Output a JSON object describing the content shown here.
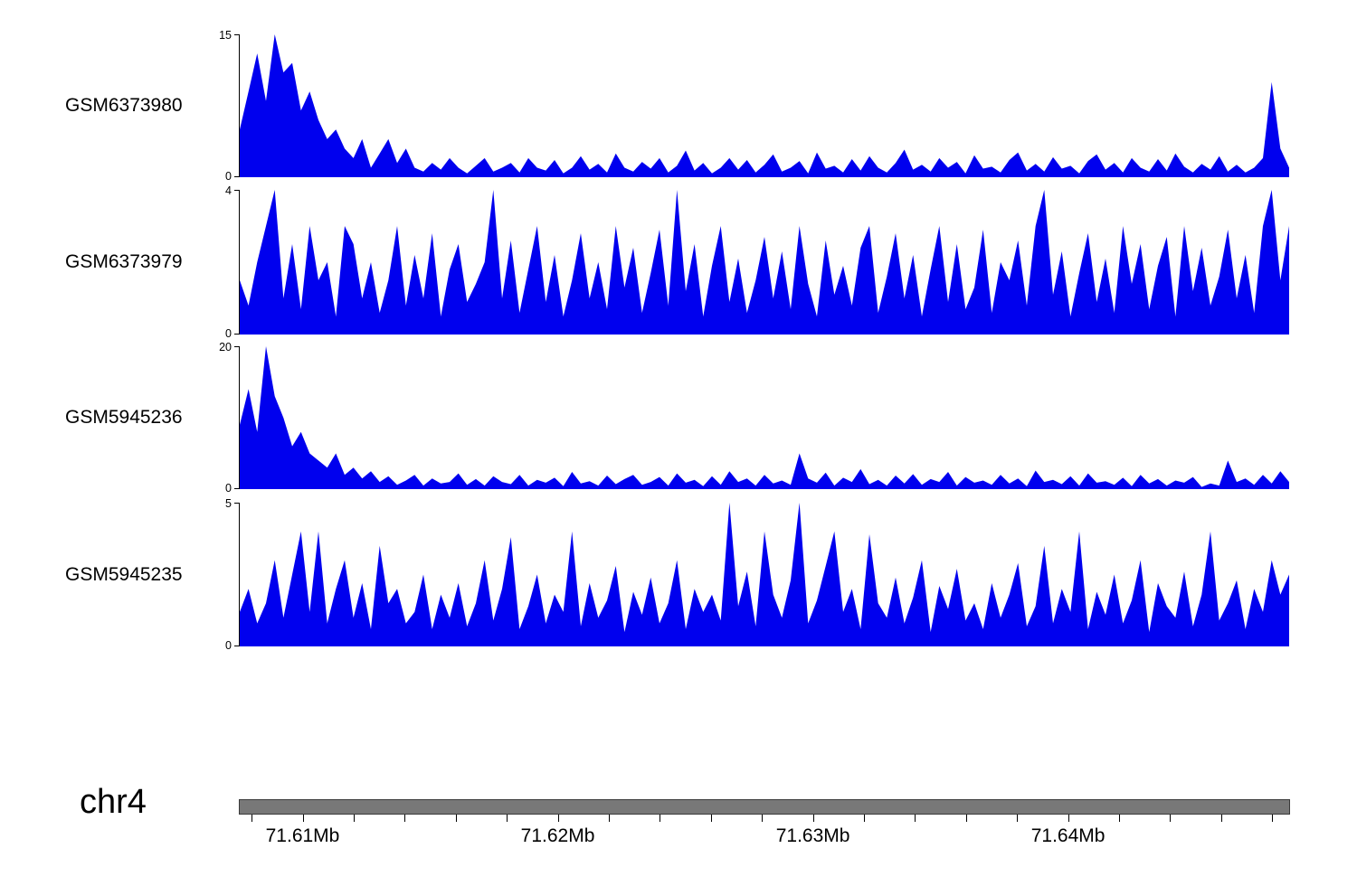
{
  "colors": {
    "signal": "#0000EE",
    "axis": "#000000",
    "chrom_bar": "#787878",
    "chrom_bar_border": "#3a3a3a"
  },
  "chart_data": {
    "type": "area",
    "x_axis": {
      "chromosome": "chr4",
      "unit": "Mb",
      "range_mb": [
        71.6075,
        71.6487
      ],
      "major_ticks": [
        {
          "mb": 71.61,
          "label": "71.61Mb"
        },
        {
          "mb": 71.62,
          "label": "71.62Mb"
        },
        {
          "mb": 71.63,
          "label": "71.63Mb"
        },
        {
          "mb": 71.64,
          "label": "71.64Mb"
        }
      ],
      "minor_tick_start_mb": 71.608,
      "minor_tick_step_mb": 0.002
    },
    "series": [
      {
        "name": "GSM6373980",
        "ylim": [
          0,
          15
        ],
        "ymax_label": "15",
        "ymin_label": "0",
        "values": [
          5,
          9,
          13,
          8,
          15,
          11,
          12,
          7,
          9,
          6,
          4,
          5,
          3,
          2,
          4,
          1,
          2.5,
          4,
          1.5,
          3,
          1,
          0.6,
          1.5,
          0.8,
          2,
          1,
          0.4,
          1.2,
          2,
          0.6,
          1,
          1.5,
          0.5,
          2,
          1,
          0.7,
          1.8,
          0.4,
          1,
          2.2,
          0.8,
          1.4,
          0.5,
          2.5,
          1,
          0.6,
          1.6,
          0.9,
          2,
          0.5,
          1.2,
          2.8,
          0.7,
          1.5,
          0.4,
          1,
          2,
          0.8,
          1.8,
          0.5,
          1.3,
          2.4,
          0.6,
          1,
          1.7,
          0.4,
          2.6,
          0.9,
          1.2,
          0.5,
          1.9,
          0.7,
          2.2,
          1,
          0.5,
          1.5,
          2.9,
          0.8,
          1.3,
          0.6,
          2,
          1,
          1.6,
          0.4,
          2.3,
          0.9,
          1.1,
          0.5,
          1.8,
          2.6,
          0.7,
          1.4,
          0.6,
          2.1,
          0.9,
          1.2,
          0.4,
          1.7,
          2.4,
          0.8,
          1.5,
          0.5,
          2,
          1,
          0.6,
          1.9,
          0.7,
          2.5,
          1.1,
          0.5,
          1.4,
          0.8,
          2.2,
          0.6,
          1.3,
          0.5,
          1,
          2,
          10,
          3,
          1
        ]
      },
      {
        "name": "GSM6373979",
        "ylim": [
          0,
          4
        ],
        "ymax_label": "4",
        "ymin_label": "0",
        "values": [
          1.5,
          0.8,
          2,
          3,
          4,
          1,
          2.5,
          0.7,
          3,
          1.5,
          2,
          0.5,
          3,
          2.5,
          1,
          2,
          0.6,
          1.5,
          3,
          0.8,
          2.2,
          1,
          2.8,
          0.5,
          1.8,
          2.5,
          0.9,
          1.4,
          2,
          4,
          1,
          2.6,
          0.6,
          1.8,
          3,
          0.9,
          2.2,
          0.5,
          1.5,
          2.8,
          1,
          2,
          0.7,
          3,
          1.3,
          2.4,
          0.6,
          1.7,
          2.9,
          0.8,
          4,
          1.2,
          2.5,
          0.5,
          1.9,
          3,
          0.9,
          2.1,
          0.6,
          1.5,
          2.7,
          1,
          2.3,
          0.7,
          3,
          1.4,
          0.5,
          2.6,
          1.1,
          1.9,
          0.8,
          2.4,
          3,
          0.6,
          1.6,
          2.8,
          1,
          2.2,
          0.5,
          1.8,
          3,
          0.9,
          2.5,
          0.7,
          1.3,
          2.9,
          0.6,
          2,
          1.5,
          2.6,
          0.8,
          3,
          4,
          1.1,
          2.3,
          0.5,
          1.7,
          2.8,
          0.9,
          2.1,
          0.6,
          3,
          1.4,
          2.5,
          0.7,
          1.9,
          2.7,
          0.5,
          3,
          1.2,
          2.4,
          0.8,
          1.6,
          2.9,
          1,
          2.2,
          0.6,
          3,
          4,
          1.5,
          3
        ]
      },
      {
        "name": "GSM5945236",
        "ylim": [
          0,
          20
        ],
        "ymax_label": "20",
        "ymin_label": "0",
        "values": [
          9,
          14,
          8,
          20,
          13,
          10,
          6,
          8,
          5,
          4,
          3,
          5,
          2,
          3,
          1.5,
          2.5,
          1,
          1.8,
          0.6,
          1.2,
          2,
          0.5,
          1.5,
          0.8,
          1,
          2.2,
          0.6,
          1.4,
          0.5,
          1.8,
          1,
          0.7,
          2,
          0.5,
          1.3,
          0.9,
          1.6,
          0.4,
          2.4,
          0.8,
          1.1,
          0.5,
          1.9,
          0.7,
          1.4,
          2,
          0.6,
          1,
          1.7,
          0.5,
          2.2,
          0.9,
          1.3,
          0.4,
          1.8,
          0.6,
          2.5,
          1,
          1.5,
          0.5,
          2,
          0.8,
          1.2,
          0.6,
          5,
          1.5,
          0.9,
          2.3,
          0.5,
          1.6,
          1,
          2.8,
          0.7,
          1.3,
          0.5,
          1.9,
          0.8,
          2.1,
          0.6,
          1.4,
          1,
          2.4,
          0.5,
          1.7,
          0.9,
          1.2,
          0.6,
          2,
          0.8,
          1.5,
          0.4,
          2.6,
          1,
          1.3,
          0.7,
          1.8,
          0.5,
          2.2,
          0.9,
          1.1,
          0.6,
          1.6,
          0.4,
          2,
          0.8,
          1.4,
          0.5,
          1.2,
          0.9,
          1.7,
          0.3,
          0.8,
          0.5,
          4,
          1,
          1.5,
          0.6,
          2,
          0.8,
          2.5,
          1
        ]
      },
      {
        "name": "GSM5945235",
        "ylim": [
          0,
          5
        ],
        "ymax_label": "5",
        "ymin_label": "0",
        "values": [
          1.2,
          2,
          0.8,
          1.5,
          3,
          1,
          2.5,
          4,
          1.2,
          4,
          0.8,
          2,
          3,
          1,
          2.2,
          0.6,
          3.5,
          1.5,
          2,
          0.8,
          1.2,
          2.5,
          0.6,
          1.8,
          1,
          2.2,
          0.7,
          1.5,
          3,
          0.9,
          2,
          3.8,
          0.6,
          1.4,
          2.5,
          0.8,
          1.8,
          1.2,
          4,
          0.7,
          2.2,
          1,
          1.6,
          2.8,
          0.5,
          1.9,
          1.1,
          2.4,
          0.8,
          1.5,
          3,
          0.6,
          2,
          1.2,
          1.8,
          0.9,
          5,
          1.4,
          2.6,
          0.7,
          4,
          1.8,
          1,
          2.3,
          5,
          0.8,
          1.6,
          2.8,
          4,
          1.2,
          2,
          0.6,
          3.9,
          1.5,
          1,
          2.4,
          0.8,
          1.7,
          3,
          0.5,
          2.1,
          1.3,
          2.7,
          0.9,
          1.5,
          0.6,
          2.2,
          1,
          1.8,
          2.9,
          0.7,
          1.4,
          3.5,
          0.8,
          2,
          1.2,
          4,
          0.6,
          1.9,
          1.1,
          2.5,
          0.8,
          1.6,
          3,
          0.5,
          2.2,
          1.4,
          1,
          2.6,
          0.7,
          1.8,
          4,
          0.9,
          1.5,
          2.3,
          0.6,
          2,
          1.2,
          3,
          1.8,
          2.5
        ]
      }
    ]
  }
}
